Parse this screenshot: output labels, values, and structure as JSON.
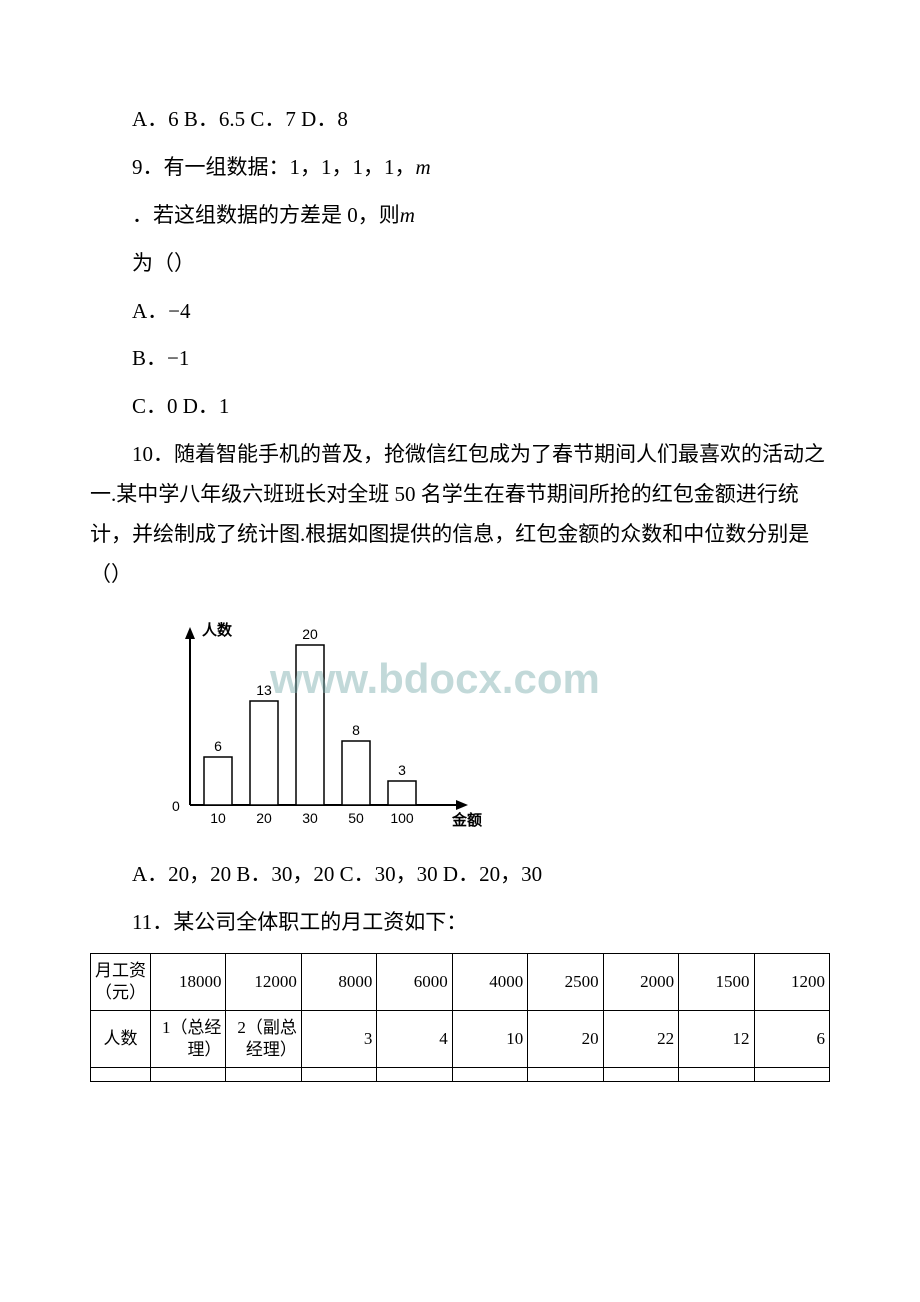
{
  "q8_line": "A．6 B．6.5 C．7 D．8",
  "q9_line1_a": "9．有一组数据：1，1，1，1，",
  "q9_var": "m",
  "q9_line2": "．若这组数据的方差是 0，则",
  "q9_line2_var": "m",
  "q9_line3": "为（）",
  "q9_optA_pre": "A．",
  "q9_optA_val": "−4",
  "q9_optB_pre": "B．",
  "q9_optB_val": "−1",
  "q9_optCD": "C．0 D．1",
  "q10_text": "10．随着智能手机的普及，抢微信红包成为了春节期间人们最喜欢的活动之一.某中学八年级六班班长对全班 50 名学生在春节期间所抢的红包金额进行统计，并绘制成了统计图.根据如图提供的信息，红包金额的众数和中位数分别是（）",
  "q10_opts": "A．20，20 B．30，20 C．30，30 D．20，30",
  "q11_text": "11．某公司全体职工的月工资如下：",
  "chart": {
    "y_axis_label": "人数",
    "x_axis_label": "金额（元）",
    "origin_label": "0",
    "bars": [
      {
        "x": "10",
        "value": 6,
        "label": "6"
      },
      {
        "x": "20",
        "value": 13,
        "label": "13"
      },
      {
        "x": "30",
        "value": 20,
        "label": "20"
      },
      {
        "x": "50",
        "value": 8,
        "label": "8"
      },
      {
        "x": "100",
        "value": 3,
        "label": "3"
      }
    ],
    "bar_fill": "#ffffff",
    "bar_stroke": "#000000",
    "axis_stroke": "#000000",
    "max_value": 20,
    "watermark_text": "www.bdocx.com"
  },
  "table": {
    "row1_header": "月工资（元）",
    "row1_cells": [
      "18000",
      "12000",
      "8000",
      "6000",
      "4000",
      "2500",
      "2000",
      "1500",
      "1200"
    ],
    "row2_header": "人数",
    "row2_cells": [
      "1（总经理）",
      "2（副总经理）",
      "3",
      "4",
      "10",
      "20",
      "22",
      "12",
      "6"
    ]
  }
}
